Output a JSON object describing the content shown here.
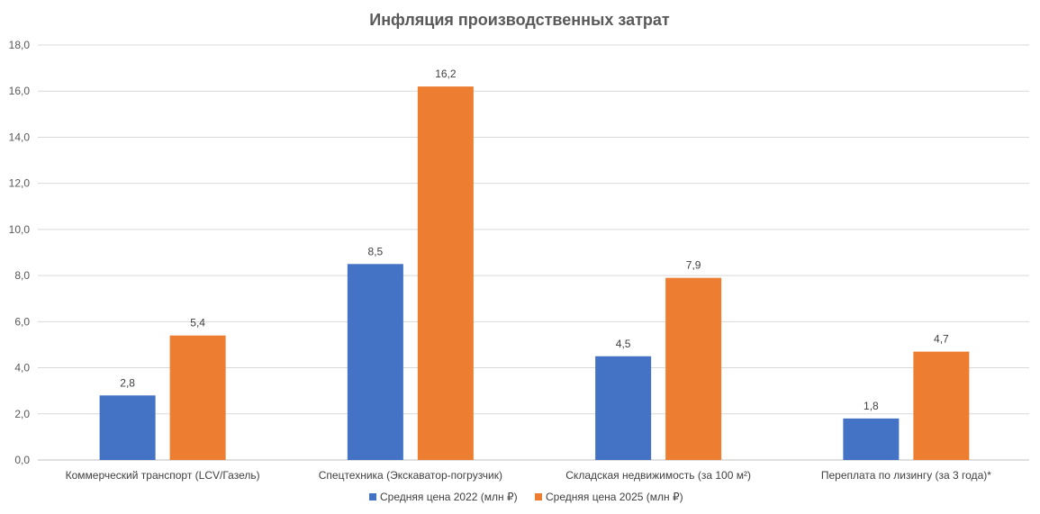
{
  "chart_data": {
    "type": "bar",
    "title": "Инфляция производственных затрат",
    "xlabel": "",
    "ylabel": "",
    "categories": [
      "Коммерческий транспорт (LCV/Газель)",
      "Спецтехника (Экскаватор-погрузчик)",
      "Складская недвижимость (за 100 м²)",
      "Переплата по лизингу (за 3 года)*"
    ],
    "series": [
      {
        "name": "Средняя цена 2022 (млн ₽)",
        "color": "#4472C4",
        "values": [
          2.8,
          8.5,
          4.5,
          1.8
        ],
        "labels": [
          "2,8",
          "8,5",
          "4,5",
          "1,8"
        ]
      },
      {
        "name": "Средняя цена 2025 (млн ₽)",
        "color": "#ED7D31",
        "values": [
          5.4,
          16.2,
          7.9,
          4.7
        ],
        "labels": [
          "5,4",
          "16,2",
          "7,9",
          "4,7"
        ]
      }
    ],
    "ylim": [
      0,
      18
    ],
    "yticks": [
      0,
      2,
      4,
      6,
      8,
      10,
      12,
      14,
      16,
      18
    ],
    "ytick_labels": [
      "0,0",
      "2,0",
      "4,0",
      "6,0",
      "8,0",
      "10,0",
      "12,0",
      "14,0",
      "16,0",
      "18,0"
    ],
    "grid": true,
    "legend_position": "bottom"
  }
}
